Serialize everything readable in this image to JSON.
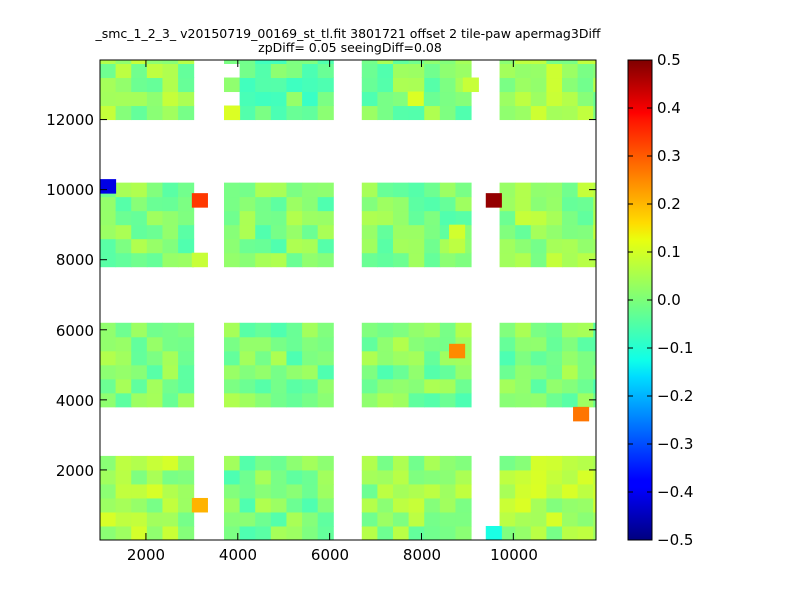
{
  "chart_data": {
    "type": "heatmap",
    "title": "_smc_1_2_3_ v20150719_00169_st_tl.fit 3801721 offset 2 tile-paw apermag3Diff",
    "subtitle": "zpDiff= 0.05 seeingDiff=0.08",
    "xlabel": "",
    "ylabel": "",
    "xlim": [
      1000,
      11800
    ],
    "ylim": [
      0,
      13700
    ],
    "x_ticks": [
      "2000",
      "4000",
      "6000",
      "8000",
      "10000"
    ],
    "y_ticks": [
      "2000",
      "4000",
      "6000",
      "8000",
      "10000",
      "12000"
    ],
    "colorbar": {
      "range": [
        -0.5,
        0.5
      ],
      "colormap": "jet",
      "ticks": [
        "0.5",
        "0.4",
        "0.3",
        "0.2",
        "0.1",
        "0.0",
        "−0.1",
        "−0.2",
        "−0.3",
        "−0.4",
        "−0.5"
      ]
    },
    "grid": false,
    "cell_size": [
      340,
      400
    ],
    "dense_blocks": [
      {
        "x": [
          1000,
          3000
        ],
        "y": [
          3800,
          6000
        ],
        "base": 0.0
      },
      {
        "x": [
          3700,
          6000
        ],
        "y": [
          3800,
          6000
        ],
        "base": 0.0
      },
      {
        "x": [
          6700,
          9000
        ],
        "y": [
          3800,
          6000
        ],
        "base": 0.0
      },
      {
        "x": [
          9700,
          11800
        ],
        "y": [
          3800,
          6000
        ],
        "base": 0.0
      },
      {
        "x": [
          1000,
          3000
        ],
        "y": [
          7800,
          9900
        ],
        "base": 0.0
      },
      {
        "x": [
          3700,
          6000
        ],
        "y": [
          7800,
          9900
        ],
        "base": 0.0
      },
      {
        "x": [
          6700,
          9000
        ],
        "y": [
          7800,
          9900
        ],
        "base": 0.0
      },
      {
        "x": [
          9700,
          11800
        ],
        "y": [
          7800,
          9900
        ],
        "base": 0.02
      },
      {
        "x": [
          1000,
          3000
        ],
        "y": [
          12000,
          13700
        ],
        "base": 0.02
      },
      {
        "x": [
          3700,
          6000
        ],
        "y": [
          12000,
          13700
        ],
        "base": -0.02
      },
      {
        "x": [
          6700,
          9000
        ],
        "y": [
          12000,
          13700
        ],
        "base": 0.0
      },
      {
        "x": [
          9700,
          11800
        ],
        "y": [
          12000,
          13700
        ],
        "base": 0.03
      },
      {
        "x": [
          1000,
          3000
        ],
        "y": [
          0,
          2200
        ],
        "base": 0.04
      },
      {
        "x": [
          3700,
          6000
        ],
        "y": [
          0,
          2200
        ],
        "base": 0.0
      },
      {
        "x": [
          6700,
          9000
        ],
        "y": [
          0,
          2200
        ],
        "base": 0.02
      },
      {
        "x": [
          9700,
          11800
        ],
        "y": [
          0,
          2200
        ],
        "base": 0.04
      }
    ],
    "outliers": [
      {
        "x": 1000,
        "y": 9900,
        "value": -0.4
      },
      {
        "x": 3000,
        "y": 9500,
        "value": 0.32
      },
      {
        "x": 9400,
        "y": 9500,
        "value": 0.48
      },
      {
        "x": 8600,
        "y": 5200,
        "value": 0.24
      },
      {
        "x": 11300,
        "y": 3400,
        "value": 0.26
      },
      {
        "x": 3000,
        "y": 800,
        "value": 0.2
      },
      {
        "x": 9400,
        "y": 0,
        "value": -0.1
      },
      {
        "x": 8600,
        "y": 8600,
        "value": 0.08
      },
      {
        "x": 8600,
        "y": 8200,
        "value": 0.06
      },
      {
        "x": 3000,
        "y": 7800,
        "value": 0.07
      },
      {
        "x": 7700,
        "y": 12400,
        "value": 0.09
      },
      {
        "x": 8900,
        "y": 12800,
        "value": 0.07
      },
      {
        "x": 3700,
        "y": 12000,
        "value": 0.09
      }
    ]
  }
}
